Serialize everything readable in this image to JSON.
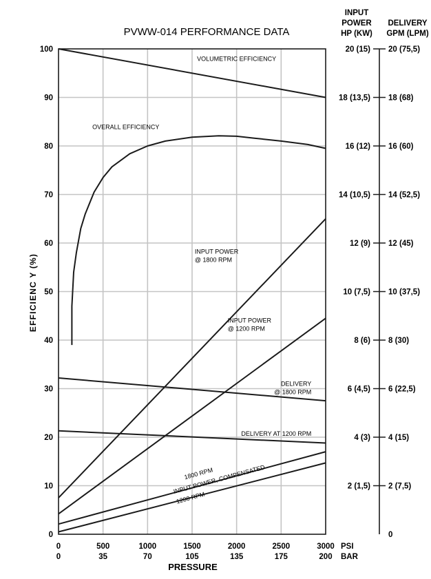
{
  "chart_data": {
    "type": "line",
    "title": "PVWW-014 PERFORMANCE DATA",
    "xlabel": "PRESSURE",
    "ylabel": "EFFICIENC Y (%)",
    "x_unit_primary": "PSI",
    "x_unit_secondary": "BAR",
    "xlim": [
      0,
      3000
    ],
    "ylim": [
      0,
      100
    ],
    "grid": true,
    "x_ticks": [
      {
        "psi": "0",
        "bar": "0",
        "v": 0
      },
      {
        "psi": "500",
        "bar": "35",
        "v": 500
      },
      {
        "psi": "1000",
        "bar": "70",
        "v": 1000
      },
      {
        "psi": "1500",
        "bar": "105",
        "v": 1500
      },
      {
        "psi": "2000",
        "bar": "135",
        "v": 2000
      },
      {
        "psi": "2500",
        "bar": "175",
        "v": 2500
      },
      {
        "psi": "3000",
        "bar": "200",
        "v": 3000
      }
    ],
    "y_ticks": [
      "0",
      "10",
      "20",
      "30",
      "40",
      "50",
      "60",
      "70",
      "80",
      "90",
      "100"
    ],
    "right_axes": [
      {
        "header": [
          "INPUT",
          "POWER",
          "HP (KW)"
        ],
        "ticks": [
          "2 (1,5)",
          "4 (3)",
          "6 (4,5)",
          "8 (6)",
          "10 (7,5)",
          "12 (9)",
          "14 (10,5)",
          "16 (12)",
          "18 (13,5)",
          "20 (15)"
        ]
      },
      {
        "header": [
          "DELIVERY",
          "GPM (LPM)"
        ],
        "ticks": [
          "0",
          "2 (7,5)",
          "4 (15)",
          "6 (22,5)",
          "8 (30)",
          "10 (37,5)",
          "12 (45)",
          "14 (52,5)",
          "16 (60)",
          "18 (68)",
          "20 (75,5)"
        ]
      }
    ],
    "series": [
      {
        "id": "volumetric",
        "x": [
          0,
          3000
        ],
        "y": [
          100,
          90
        ]
      },
      {
        "id": "overall",
        "x": [
          150,
          150,
          170,
          200,
          250,
          300,
          400,
          500,
          600,
          800,
          1000,
          1200,
          1500,
          1800,
          2000,
          2200,
          2500,
          2800,
          3000
        ],
        "y": [
          39,
          47,
          54,
          58,
          63,
          66,
          70.5,
          73.5,
          75.7,
          78.4,
          80,
          81,
          81.8,
          82.1,
          82,
          81.6,
          81,
          80.3,
          79.5
        ]
      },
      {
        "id": "input_1800",
        "x": [
          0,
          3000
        ],
        "y": [
          7.5,
          65
        ]
      },
      {
        "id": "input_1200",
        "x": [
          0,
          3000
        ],
        "y": [
          4.2,
          44.5
        ]
      },
      {
        "id": "delivery_1800",
        "x": [
          0,
          3000
        ],
        "y": [
          32.2,
          27.5
        ]
      },
      {
        "id": "delivery_1200",
        "x": [
          0,
          3000
        ],
        "y": [
          21.3,
          18.8
        ]
      },
      {
        "id": "comp_1800",
        "x": [
          0,
          3000
        ],
        "y": [
          2.1,
          17
        ]
      },
      {
        "id": "comp_1200",
        "x": [
          0,
          3000
        ],
        "y": [
          0.5,
          14.7
        ]
      }
    ],
    "annotations": [
      {
        "id": "volumetric",
        "lines": [
          "VOLUMETRIC EFFICIENCY"
        ],
        "x": 2000,
        "y": 97.5,
        "anchor": "middle",
        "rotate": false
      },
      {
        "id": "overall",
        "lines": [
          "OVERALL EFFICIENCY"
        ],
        "x": 380,
        "y": 83.5,
        "anchor": "start",
        "rotate": false
      },
      {
        "id": "input_1800",
        "lines": [
          "INPUT POWER",
          "@ 1800 RPM"
        ],
        "x": 1530,
        "y": 57.8,
        "anchor": "start",
        "rotate": false
      },
      {
        "id": "input_1200",
        "lines": [
          "INPUT POWER",
          "@ 1200 RPM"
        ],
        "x": 1900,
        "y": 43.6,
        "anchor": "start",
        "rotate": false
      },
      {
        "id": "delivery_1800",
        "lines": [
          "DELIVERY",
          "@ 1800 RPM"
        ],
        "x": 2840,
        "y": 30.6,
        "anchor": "end",
        "rotate": false
      },
      {
        "id": "delivery_1200",
        "lines": [
          "DELIVERY AT 1200 RPM"
        ],
        "x": 2840,
        "y": 20.3,
        "anchor": "end",
        "rotate": false
      },
      {
        "id": "comp_top",
        "lines": [
          "1800 RPM"
        ],
        "x": 1420,
        "y": 11.3,
        "anchor": "start",
        "rotate": true
      },
      {
        "id": "comp_mid",
        "lines": [
          "INPUT POWER, COMPENSATED"
        ],
        "x": 1810,
        "y": 10.9,
        "anchor": "middle",
        "rotate": true
      },
      {
        "id": "comp_bot",
        "lines": [
          "1200 RPM"
        ],
        "x": 1330,
        "y": 6.3,
        "anchor": "start",
        "rotate": true
      }
    ]
  }
}
